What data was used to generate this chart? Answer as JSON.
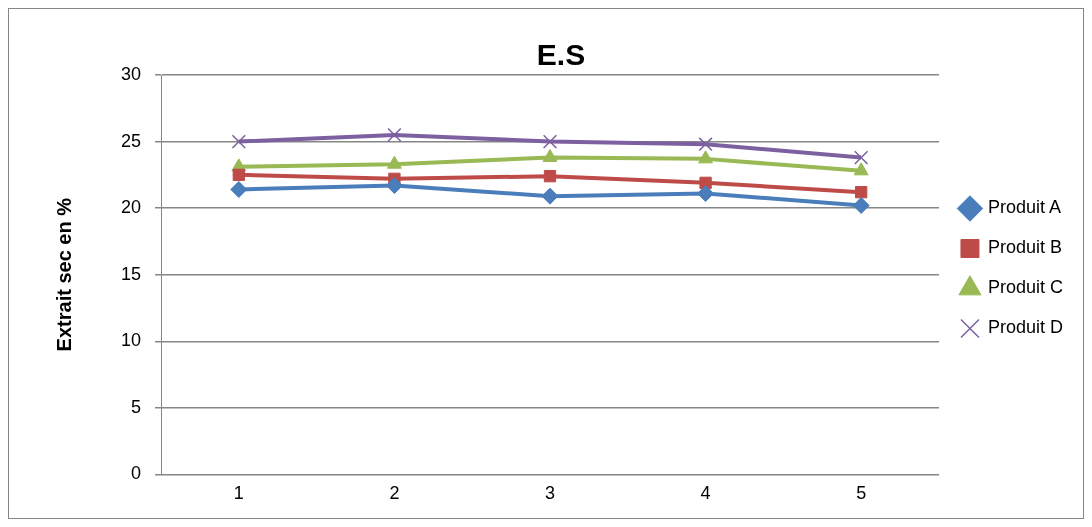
{
  "chart_data": {
    "type": "line",
    "title": "E.S",
    "ylabel": "Extrait sec en %",
    "categories": [
      "1",
      "2",
      "3",
      "4",
      "5"
    ],
    "series": [
      {
        "name": "Produit A",
        "color": "#4a7ebb",
        "marker": "diamond",
        "values": [
          21.4,
          21.7,
          20.9,
          21.1,
          20.2
        ]
      },
      {
        "name": "Produit B",
        "color": "#be4b48",
        "marker": "square",
        "values": [
          22.5,
          22.2,
          22.4,
          21.9,
          21.2
        ]
      },
      {
        "name": "Produit C",
        "color": "#98b954",
        "marker": "triangle",
        "values": [
          23.1,
          23.3,
          23.8,
          23.7,
          22.8
        ]
      },
      {
        "name": "Produit D",
        "color": "#7d60a0",
        "marker": "cross",
        "values": [
          25.0,
          25.5,
          25.0,
          24.8,
          23.8
        ]
      }
    ],
    "ylim": [
      0,
      30
    ],
    "yticks": [
      0,
      5,
      10,
      15,
      20,
      25,
      30
    ],
    "grid": "y",
    "legend": "right",
    "line_style": "solid"
  }
}
